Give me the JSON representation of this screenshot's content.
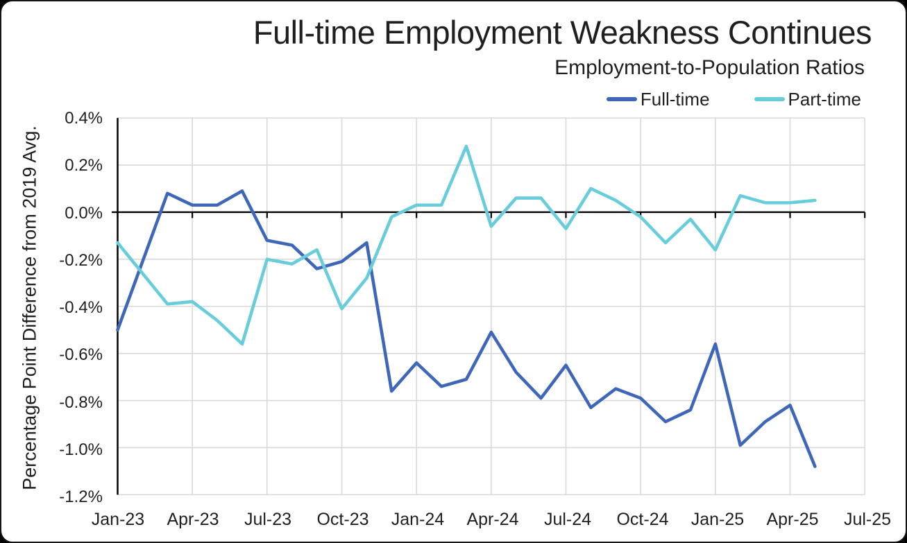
{
  "window": {
    "background": "#000000",
    "card_background": "#ffffff",
    "card_border": "#141414"
  },
  "chart_data": {
    "type": "line",
    "title": "Full-time Employment Weakness Continues",
    "subtitle": "Employment-to-Population Ratios",
    "ylabel": "Percentage Point Difference from 2019 Avg.",
    "xlabel": "",
    "ylim": [
      -1.2,
      0.4
    ],
    "y_tick_step": 0.2,
    "y_tick_labels": [
      "0.4%",
      "0.2%",
      "0.0%",
      "-0.2%",
      "-0.4%",
      "-0.6%",
      "-0.8%",
      "-1.0%",
      "-1.2%"
    ],
    "x_tick_labels": [
      "Jan-23",
      "Apr-23",
      "Jul-23",
      "Oct-23",
      "Jan-24",
      "Apr-24",
      "Jul-24",
      "Oct-24",
      "Jan-25",
      "Apr-25",
      "Jul-25"
    ],
    "x": [
      "Jan-23",
      "Feb-23",
      "Mar-23",
      "Apr-23",
      "May-23",
      "Jun-23",
      "Jul-23",
      "Aug-23",
      "Sep-23",
      "Oct-23",
      "Nov-23",
      "Dec-23",
      "Jan-24",
      "Feb-24",
      "Mar-24",
      "Apr-24",
      "May-24",
      "Jun-24",
      "Jul-24",
      "Aug-24",
      "Sep-24",
      "Oct-24",
      "Nov-24",
      "Dec-24",
      "Jan-25",
      "Feb-25",
      "Mar-25",
      "Apr-25",
      "May-25"
    ],
    "grid": true,
    "grid_color": "#D9D9D9",
    "axis_color": "#000000",
    "legend_position": "top-right",
    "series": [
      {
        "name": "Full-time",
        "color": "#3E66B9",
        "values": [
          -0.5,
          -0.21,
          0.08,
          0.03,
          0.03,
          0.09,
          -0.12,
          -0.14,
          -0.24,
          -0.21,
          -0.13,
          -0.76,
          -0.64,
          -0.74,
          -0.71,
          -0.51,
          -0.68,
          -0.79,
          -0.65,
          -0.83,
          -0.75,
          -0.79,
          -0.89,
          -0.84,
          -0.56,
          -0.99,
          -0.89,
          -0.82,
          -1.08
        ]
      },
      {
        "name": "Part-time",
        "color": "#67CDDB",
        "values": [
          -0.13,
          -0.26,
          -0.39,
          -0.38,
          -0.46,
          -0.56,
          -0.2,
          -0.22,
          -0.16,
          -0.41,
          -0.28,
          -0.02,
          0.03,
          0.03,
          0.28,
          -0.06,
          0.06,
          0.06,
          -0.07,
          0.1,
          0.05,
          -0.02,
          -0.13,
          -0.03,
          -0.16,
          0.07,
          0.04,
          0.04,
          0.05
        ]
      }
    ]
  }
}
